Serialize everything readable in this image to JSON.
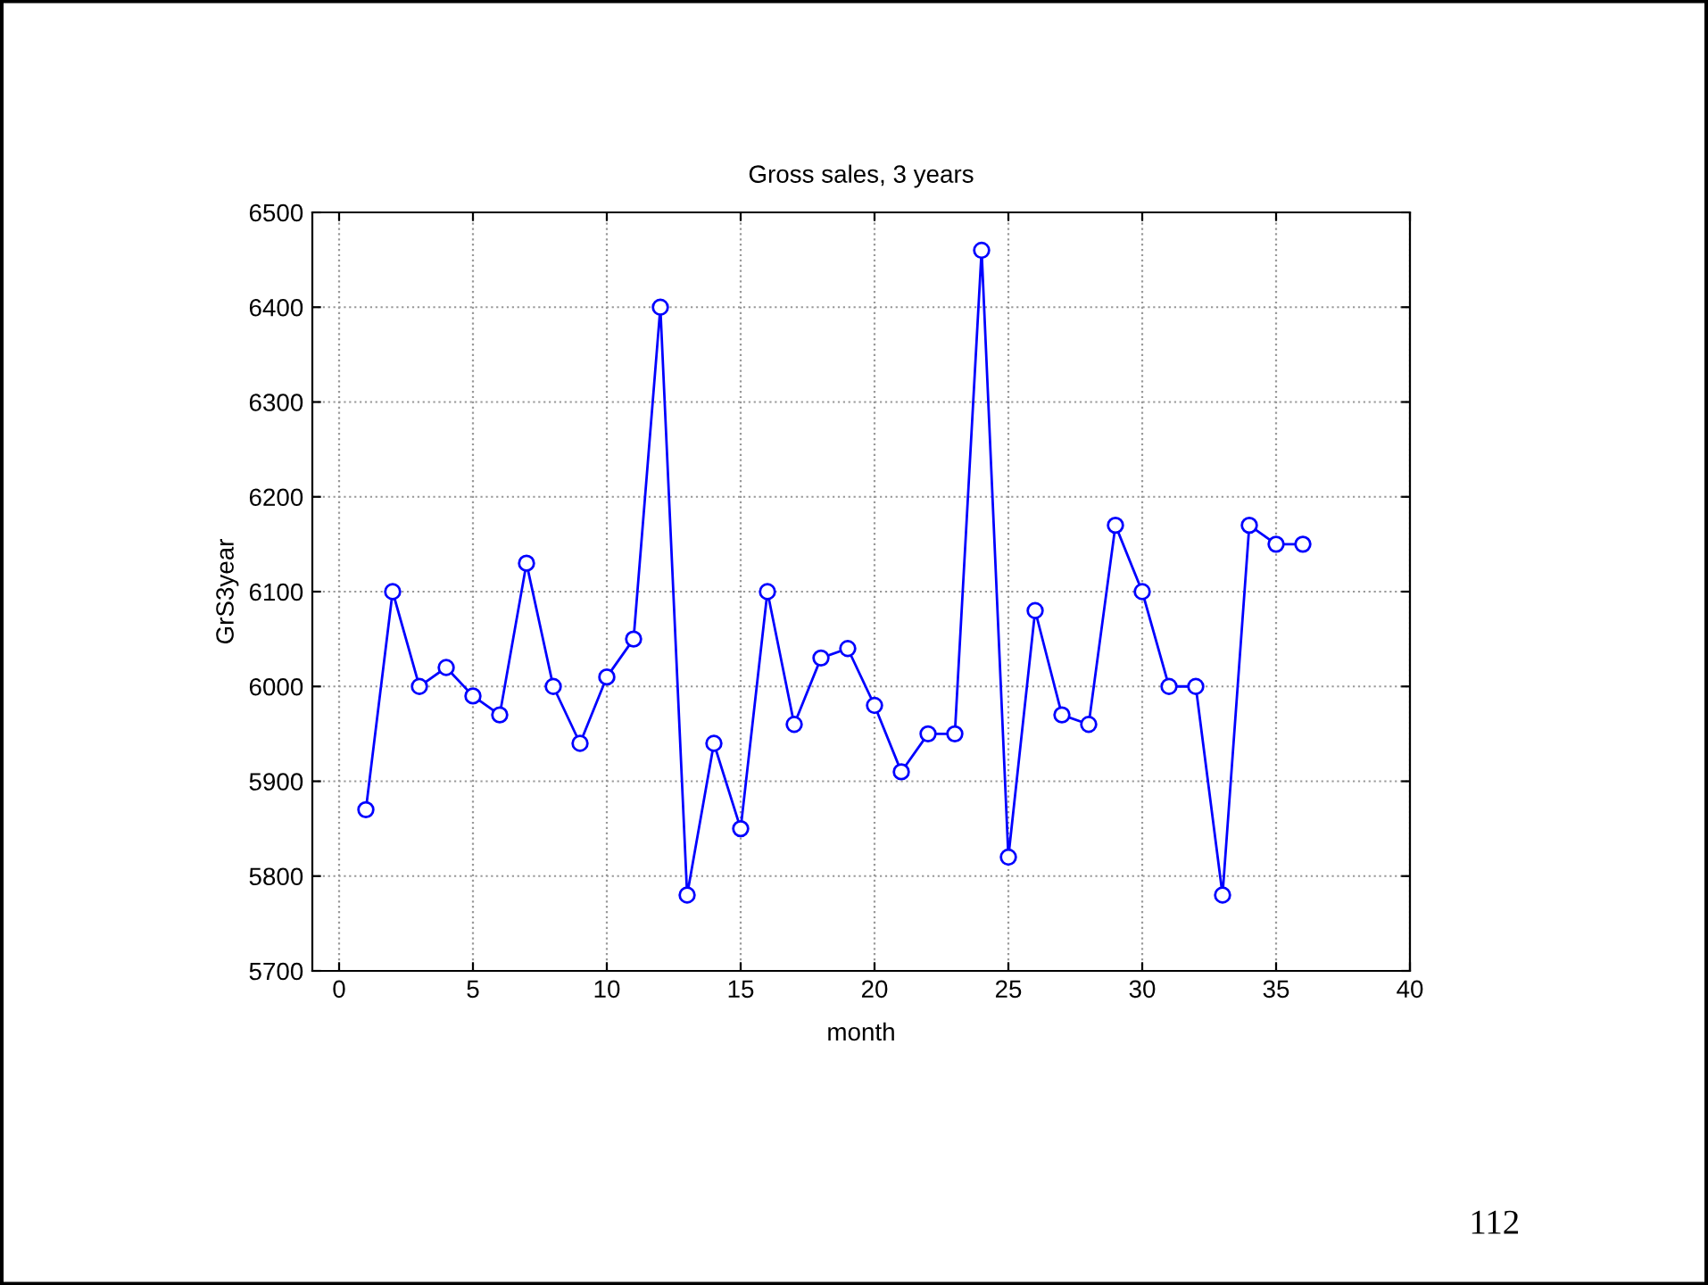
{
  "chart_data": {
    "type": "line",
    "title": "Gross sales, 3 years",
    "xlabel": "month",
    "ylabel": "GrS3year",
    "x": [
      1,
      2,
      3,
      4,
      5,
      6,
      7,
      8,
      9,
      10,
      11,
      12,
      13,
      14,
      15,
      16,
      17,
      18,
      19,
      20,
      21,
      22,
      23,
      24,
      25,
      26,
      27,
      28,
      29,
      30,
      31,
      32,
      33,
      34,
      35,
      36
    ],
    "series": [
      {
        "color": "#0000ff",
        "values": [
          5870,
          6100,
          6000,
          6020,
          5990,
          5970,
          6130,
          6000,
          5940,
          6010,
          6050,
          6400,
          5780,
          5940,
          5850,
          6100,
          5960,
          6030,
          6040,
          5980,
          5910,
          5950,
          5950,
          6460,
          5820,
          6080,
          5970,
          5960,
          6170,
          6100,
          6000,
          6000,
          5780,
          6170,
          6150,
          6150
        ]
      }
    ],
    "xlim": [
      -1,
      40
    ],
    "xticks": [
      0,
      5,
      10,
      15,
      20,
      25,
      30,
      35,
      40
    ],
    "ylim": [
      5700,
      6500
    ],
    "yticks": [
      5700,
      5800,
      5900,
      6000,
      6100,
      6200,
      6300,
      6400,
      6500
    ],
    "grid": true,
    "marker": "circle",
    "line_style": "solid",
    "legend": false,
    "annotations": [
      "112"
    ]
  }
}
